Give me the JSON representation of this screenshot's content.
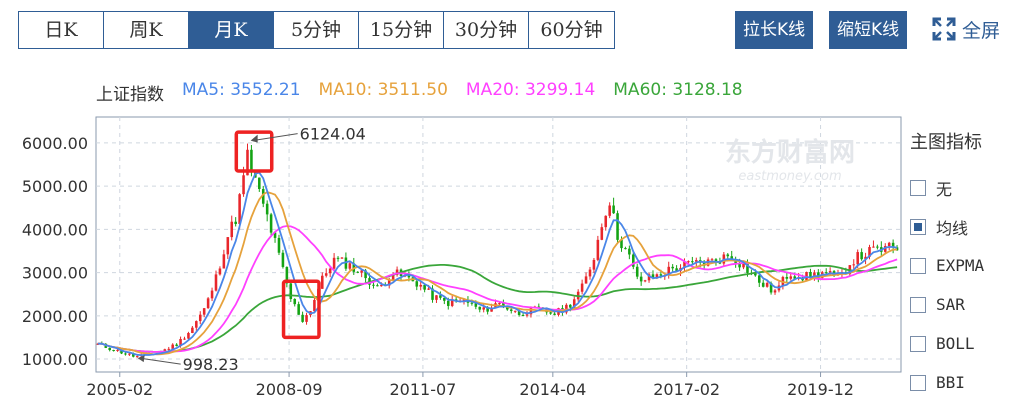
{
  "tabs": [
    "日K",
    "周K",
    "月K",
    "5分钟",
    "15分钟",
    "30分钟",
    "60分钟"
  ],
  "active_tab": 2,
  "buttons": {
    "lengthen": "拉长K线",
    "shorten": "缩短K线",
    "fullscreen": "全屏"
  },
  "legend": {
    "index_name": "上证指数",
    "items": [
      {
        "label": "MA5: 3552.21",
        "color": "#4a86e8"
      },
      {
        "label": "MA10: 3511.50",
        "color": "#e6a23c"
      },
      {
        "label": "MA20: 3299.14",
        "color": "#ff40ff"
      },
      {
        "label": "MA60: 3128.18",
        "color": "#3aa63a"
      }
    ]
  },
  "side_panel": {
    "title": "主图指标",
    "items": [
      {
        "label": "无",
        "checked": false
      },
      {
        "label": "均线",
        "checked": true
      },
      {
        "label": "EXPMA",
        "checked": false
      },
      {
        "label": "SAR",
        "checked": false
      },
      {
        "label": "BOLL",
        "checked": false
      },
      {
        "label": "BBI",
        "checked": false
      }
    ]
  },
  "watermark": {
    "cn": "东方财富网",
    "en": "eastmoney.com"
  },
  "colors": {
    "up": "#e8262b",
    "down": "#13a313",
    "highlight": "#ee2222",
    "frame": "#8a99ad"
  },
  "chart_data": {
    "type": "candlestick",
    "x_tick_labels": [
      "2005-02",
      "2008-09",
      "2011-07",
      "2014-04",
      "2017-02",
      "2019-12"
    ],
    "x_tick_dates": [
      2005.083,
      2008.667,
      2011.5,
      2014.25,
      2017.083,
      2019.917
    ],
    "x_range": [
      2004.58,
      2021.62
    ],
    "y_ticks": [
      "1000.00",
      "2000.00",
      "3000.00",
      "4000.00",
      "5000.00",
      "6000.00"
    ],
    "y_tick_values": [
      1000,
      2000,
      3000,
      4000,
      5000,
      6000
    ],
    "ylim": [
      700,
      6600
    ],
    "annotations": [
      {
        "text": "6124.04",
        "date": 2007.79,
        "value": 6124.04
      },
      {
        "text": "998.23",
        "date": 2005.42,
        "value": 998.23
      }
    ],
    "highlight_boxes": [
      {
        "date_range": [
          2007.55,
          2008.3
        ],
        "value_range": [
          5350,
          6250
        ]
      },
      {
        "date_range": [
          2008.55,
          2009.3
        ],
        "value_range": [
          1500,
          2800
        ]
      }
    ],
    "trend_anchors": [
      [
        2004.62,
        1340
      ],
      [
        2005.0,
        1200
      ],
      [
        2005.42,
        1050
      ],
      [
        2005.9,
        1150
      ],
      [
        2006.3,
        1350
      ],
      [
        2006.6,
        1700
      ],
      [
        2006.9,
        2200
      ],
      [
        2007.1,
        2800
      ],
      [
        2007.35,
        3800
      ],
      [
        2007.55,
        4300
      ],
      [
        2007.79,
        5700
      ],
      [
        2007.95,
        5100
      ],
      [
        2008.2,
        4300
      ],
      [
        2008.45,
        3400
      ],
      [
        2008.7,
        2400
      ],
      [
        2008.95,
        1900
      ],
      [
        2009.1,
        2100
      ],
      [
        2009.35,
        2800
      ],
      [
        2009.6,
        3300
      ],
      [
        2009.9,
        3200
      ],
      [
        2010.3,
        2900
      ],
      [
        2010.55,
        2600
      ],
      [
        2010.85,
        3000
      ],
      [
        2011.1,
        2900
      ],
      [
        2011.4,
        2750
      ],
      [
        2011.7,
        2450
      ],
      [
        2012.0,
        2300
      ],
      [
        2012.4,
        2350
      ],
      [
        2012.75,
        2100
      ],
      [
        2013.1,
        2300
      ],
      [
        2013.5,
        2050
      ],
      [
        2013.9,
        2150
      ],
      [
        2014.3,
        2050
      ],
      [
        2014.6,
        2250
      ],
      [
        2014.9,
        2700
      ],
      [
        2015.1,
        3300
      ],
      [
        2015.35,
        4400
      ],
      [
        2015.45,
        4700
      ],
      [
        2015.6,
        3900
      ],
      [
        2015.85,
        3400
      ],
      [
        2016.05,
        2800
      ],
      [
        2016.4,
        2900
      ],
      [
        2016.8,
        3100
      ],
      [
        2017.2,
        3200
      ],
      [
        2017.6,
        3250
      ],
      [
        2018.0,
        3400
      ],
      [
        2018.3,
        3150
      ],
      [
        2018.6,
        2800
      ],
      [
        2018.95,
        2550
      ],
      [
        2019.25,
        3000
      ],
      [
        2019.6,
        2900
      ],
      [
        2020.0,
        3000
      ],
      [
        2020.3,
        2850
      ],
      [
        2020.6,
        3300
      ],
      [
        2021.0,
        3500
      ],
      [
        2021.3,
        3550
      ],
      [
        2021.58,
        3580
      ]
    ],
    "series": [
      {
        "name": "MA5",
        "color": "#4a86e8",
        "value_last": 3552.21
      },
      {
        "name": "MA10",
        "color": "#e6a23c",
        "value_last": 3511.5
      },
      {
        "name": "MA20",
        "color": "#ff40ff",
        "value_last": 3299.14
      },
      {
        "name": "MA60",
        "color": "#3aa63a",
        "value_last": 3128.18
      }
    ]
  }
}
